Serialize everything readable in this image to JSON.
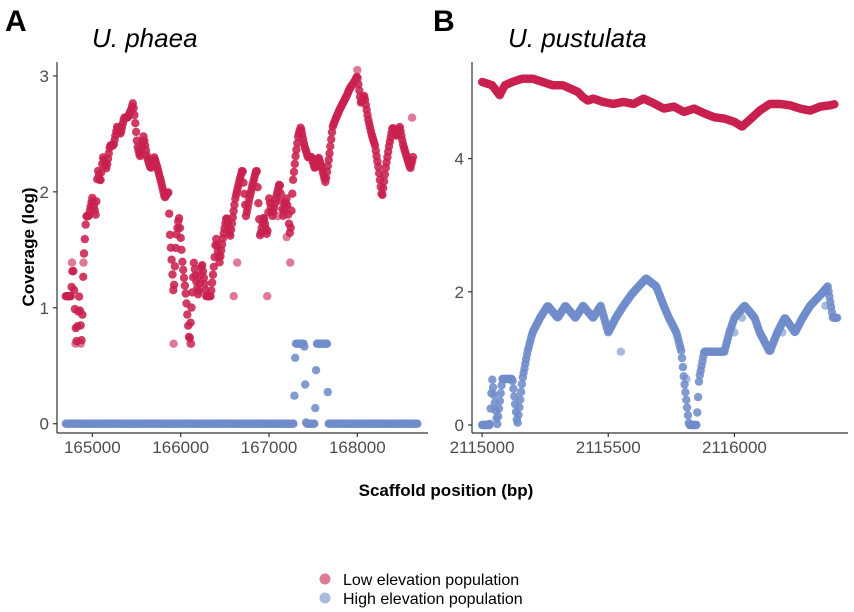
{
  "colors": {
    "low": "#C8214F",
    "high": "#6F8CC9"
  },
  "ylabel": "Coverage (log)",
  "xlabel": "Scaffold position (bp)",
  "legend": [
    {
      "label": "Low elevation population",
      "series": "low"
    },
    {
      "label": "High elevation population",
      "series": "high"
    }
  ],
  "chart_data": [
    {
      "type": "scatter",
      "panel": "A",
      "title": "U. phaea",
      "xlim": [
        164600,
        168800
      ],
      "ylim": [
        -0.08,
        3.12
      ],
      "xticks": [
        165000,
        166000,
        167000,
        168000
      ],
      "xtick_labels": [
        "165000",
        "166000",
        "167000",
        "168000"
      ],
      "yticks": [
        0,
        1,
        2,
        3
      ],
      "ytick_labels": [
        "0",
        "1",
        "2",
        "3"
      ],
      "series": [
        {
          "name": "Low elevation population",
          "key": "low",
          "profile": [
            [
              164700,
              1.1
            ],
            [
              164760,
              1.1
            ],
            [
              164780,
              1.39
            ],
            [
              164820,
              0.69
            ],
            [
              164850,
              1.1
            ],
            [
              164880,
              0.69
            ],
            [
              164900,
              1.39
            ],
            [
              164930,
              1.79
            ],
            [
              164960,
              1.79
            ],
            [
              165000,
              1.95
            ],
            [
              165040,
              1.79
            ],
            [
              165060,
              2.2
            ],
            [
              165090,
              2.08
            ],
            [
              165120,
              2.3
            ],
            [
              165160,
              2.2
            ],
            [
              165200,
              2.4
            ],
            [
              165240,
              2.4
            ],
            [
              165280,
              2.56
            ],
            [
              165320,
              2.5
            ],
            [
              165360,
              2.64
            ],
            [
              165400,
              2.64
            ],
            [
              165440,
              2.71
            ],
            [
              165460,
              2.77
            ],
            [
              165480,
              2.64
            ],
            [
              165510,
              2.4
            ],
            [
              165540,
              2.3
            ],
            [
              165580,
              2.48
            ],
            [
              165620,
              2.3
            ],
            [
              165660,
              2.2
            ],
            [
              165700,
              2.3
            ],
            [
              165740,
              2.2
            ],
            [
              165780,
              2.08
            ],
            [
              165820,
              1.95
            ],
            [
              165860,
              2.0
            ],
            [
              165880,
              1.61
            ],
            [
              165900,
              1.39
            ],
            [
              165920,
              1.1
            ],
            [
              165950,
              1.61
            ],
            [
              165980,
              1.79
            ],
            [
              166000,
              1.61
            ],
            [
              166020,
              1.39
            ],
            [
              166060,
              1.1
            ],
            [
              166100,
              0.69
            ],
            [
              166150,
              1.39
            ],
            [
              166200,
              1.1
            ],
            [
              166240,
              1.39
            ],
            [
              166290,
              1.1
            ],
            [
              166340,
              1.1
            ],
            [
              166380,
              1.39
            ],
            [
              166400,
              1.61
            ],
            [
              166440,
              1.39
            ],
            [
              166480,
              1.61
            ],
            [
              166520,
              1.79
            ],
            [
              166560,
              1.61
            ],
            [
              166620,
              1.95
            ],
            [
              166660,
              2.08
            ],
            [
              166700,
              2.2
            ],
            [
              166740,
              1.79
            ],
            [
              166780,
              1.95
            ],
            [
              166820,
              2.08
            ],
            [
              166860,
              2.2
            ],
            [
              166900,
              1.61
            ],
            [
              166940,
              1.79
            ],
            [
              166980,
              1.61
            ],
            [
              167000,
              1.95
            ],
            [
              167040,
              1.79
            ],
            [
              167080,
              1.95
            ],
            [
              167120,
              2.08
            ],
            [
              167160,
              1.79
            ],
            [
              167200,
              1.95
            ],
            [
              167240,
              1.61
            ],
            [
              167270,
              2.08
            ],
            [
              167300,
              2.3
            ],
            [
              167330,
              2.48
            ],
            [
              167360,
              2.56
            ],
            [
              167400,
              2.4
            ],
            [
              167440,
              2.3
            ],
            [
              167480,
              2.3
            ],
            [
              167520,
              2.2
            ],
            [
              167560,
              2.3
            ],
            [
              167600,
              2.2
            ],
            [
              167640,
              2.08
            ],
            [
              167680,
              2.3
            ],
            [
              167720,
              2.56
            ],
            [
              167760,
              2.64
            ],
            [
              167800,
              2.71
            ],
            [
              167840,
              2.77
            ],
            [
              167880,
              2.83
            ],
            [
              167920,
              2.9
            ],
            [
              167960,
              2.94
            ],
            [
              168000,
              3.0
            ],
            [
              168040,
              2.77
            ],
            [
              168080,
              2.83
            ],
            [
              168120,
              2.64
            ],
            [
              168160,
              2.5
            ],
            [
              168200,
              2.4
            ],
            [
              168240,
              2.2
            ],
            [
              168280,
              1.95
            ],
            [
              168320,
              2.2
            ],
            [
              168360,
              2.4
            ],
            [
              168400,
              2.56
            ],
            [
              168440,
              2.48
            ],
            [
              168480,
              2.56
            ],
            [
              168520,
              2.4
            ],
            [
              168560,
              2.3
            ],
            [
              168600,
              2.2
            ],
            [
              168630,
              2.3
            ]
          ],
          "extra": [
            [
              164810,
              0.69
            ],
            [
              164870,
              0.69
            ],
            [
              164770,
              1.39
            ],
            [
              164900,
              1.39
            ],
            [
              165920,
              0.69
            ],
            [
              166110,
              0.69
            ],
            [
              166120,
              0.69
            ],
            [
              166600,
              1.1
            ],
            [
              166980,
              1.1
            ],
            [
              166640,
              1.39
            ],
            [
              167240,
              1.39
            ],
            [
              167200,
              1.61
            ],
            [
              167100,
              1.79
            ],
            [
              168000,
              3.05
            ],
            [
              168620,
              2.64
            ]
          ]
        },
        {
          "name": "High elevation population",
          "key": "high",
          "profile": [
            [
              164700,
              0.0
            ],
            [
              167280,
              0.0
            ],
            [
              167300,
              0.69
            ],
            [
              167400,
              0.69
            ],
            [
              167420,
              0.0
            ],
            [
              167520,
              0.0
            ],
            [
              167540,
              0.69
            ],
            [
              167660,
              0.69
            ],
            [
              167670,
              0.0
            ],
            [
              168680,
              0.0
            ]
          ],
          "extra": []
        }
      ]
    },
    {
      "type": "scatter",
      "panel": "B",
      "title": "U. pustulata",
      "xlim": [
        2114960,
        2116450
      ],
      "ylim": [
        -0.12,
        5.45
      ],
      "xticks": [
        2115000,
        2115500,
        2116000
      ],
      "xtick_labels": [
        "2115000",
        "2115500",
        "2116000"
      ],
      "yticks": [
        0,
        2,
        4
      ],
      "ytick_labels": [
        "0",
        "2",
        "4"
      ],
      "series": [
        {
          "name": "Low elevation population",
          "key": "low",
          "profile": [
            [
              2115000,
              5.15
            ],
            [
              2115040,
              5.1
            ],
            [
              2115070,
              4.95
            ],
            [
              2115090,
              5.1
            ],
            [
              2115120,
              5.15
            ],
            [
              2115160,
              5.2
            ],
            [
              2115200,
              5.2
            ],
            [
              2115240,
              5.15
            ],
            [
              2115280,
              5.1
            ],
            [
              2115320,
              5.1
            ],
            [
              2115350,
              5.05
            ],
            [
              2115380,
              5.0
            ],
            [
              2115400,
              4.92
            ],
            [
              2115420,
              4.87
            ],
            [
              2115440,
              4.9
            ],
            [
              2115480,
              4.85
            ],
            [
              2115520,
              4.82
            ],
            [
              2115560,
              4.85
            ],
            [
              2115600,
              4.82
            ],
            [
              2115640,
              4.9
            ],
            [
              2115680,
              4.83
            ],
            [
              2115720,
              4.75
            ],
            [
              2115760,
              4.78
            ],
            [
              2115800,
              4.7
            ],
            [
              2115840,
              4.75
            ],
            [
              2115880,
              4.68
            ],
            [
              2115920,
              4.62
            ],
            [
              2115960,
              4.6
            ],
            [
              2116000,
              4.55
            ],
            [
              2116030,
              4.48
            ],
            [
              2116060,
              4.58
            ],
            [
              2116100,
              4.72
            ],
            [
              2116140,
              4.82
            ],
            [
              2116180,
              4.82
            ],
            [
              2116220,
              4.8
            ],
            [
              2116260,
              4.75
            ],
            [
              2116300,
              4.72
            ],
            [
              2116340,
              4.78
            ],
            [
              2116380,
              4.8
            ],
            [
              2116400,
              4.82
            ]
          ],
          "extra": []
        },
        {
          "name": "High elevation population",
          "key": "high",
          "profile": [
            [
              2115000,
              0.0
            ],
            [
              2115030,
              0.0
            ],
            [
              2115040,
              0.69
            ],
            [
              2115060,
              0.0
            ],
            [
              2115080,
              0.69
            ],
            [
              2115120,
              0.69
            ],
            [
              2115140,
              0.0
            ],
            [
              2115160,
              0.69
            ],
            [
              2115180,
              1.1
            ],
            [
              2115200,
              1.39
            ],
            [
              2115230,
              1.61
            ],
            [
              2115260,
              1.79
            ],
            [
              2115300,
              1.61
            ],
            [
              2115330,
              1.79
            ],
            [
              2115370,
              1.61
            ],
            [
              2115400,
              1.79
            ],
            [
              2115440,
              1.61
            ],
            [
              2115470,
              1.79
            ],
            [
              2115500,
              1.39
            ],
            [
              2115530,
              1.61
            ],
            [
              2115560,
              1.79
            ],
            [
              2115590,
              1.95
            ],
            [
              2115620,
              2.08
            ],
            [
              2115650,
              2.2
            ],
            [
              2115690,
              2.08
            ],
            [
              2115720,
              1.79
            ],
            [
              2115740,
              1.61
            ],
            [
              2115770,
              1.39
            ],
            [
              2115790,
              1.1
            ],
            [
              2115800,
              0.69
            ],
            [
              2115820,
              0.0
            ],
            [
              2115850,
              0.0
            ],
            [
              2115860,
              0.69
            ],
            [
              2115880,
              1.1
            ],
            [
              2115920,
              1.1
            ],
            [
              2115960,
              1.1
            ],
            [
              2115980,
              1.39
            ],
            [
              2116000,
              1.61
            ],
            [
              2116040,
              1.79
            ],
            [
              2116080,
              1.61
            ],
            [
              2116100,
              1.39
            ],
            [
              2116140,
              1.1
            ],
            [
              2116170,
              1.39
            ],
            [
              2116200,
              1.61
            ],
            [
              2116240,
              1.39
            ],
            [
              2116270,
              1.61
            ],
            [
              2116300,
              1.79
            ],
            [
              2116340,
              1.95
            ],
            [
              2116370,
              2.08
            ],
            [
              2116390,
              1.61
            ],
            [
              2116410,
              1.61
            ]
          ],
          "extra": [
            [
              2115010,
              0.0
            ],
            [
              2115030,
              0.0
            ],
            [
              2115550,
              1.1
            ],
            [
              2115810,
              0.69
            ],
            [
              2116000,
              1.39
            ],
            [
              2116030,
              1.61
            ],
            [
              2116190,
              1.39
            ],
            [
              2116360,
              1.79
            ]
          ]
        }
      ]
    }
  ]
}
